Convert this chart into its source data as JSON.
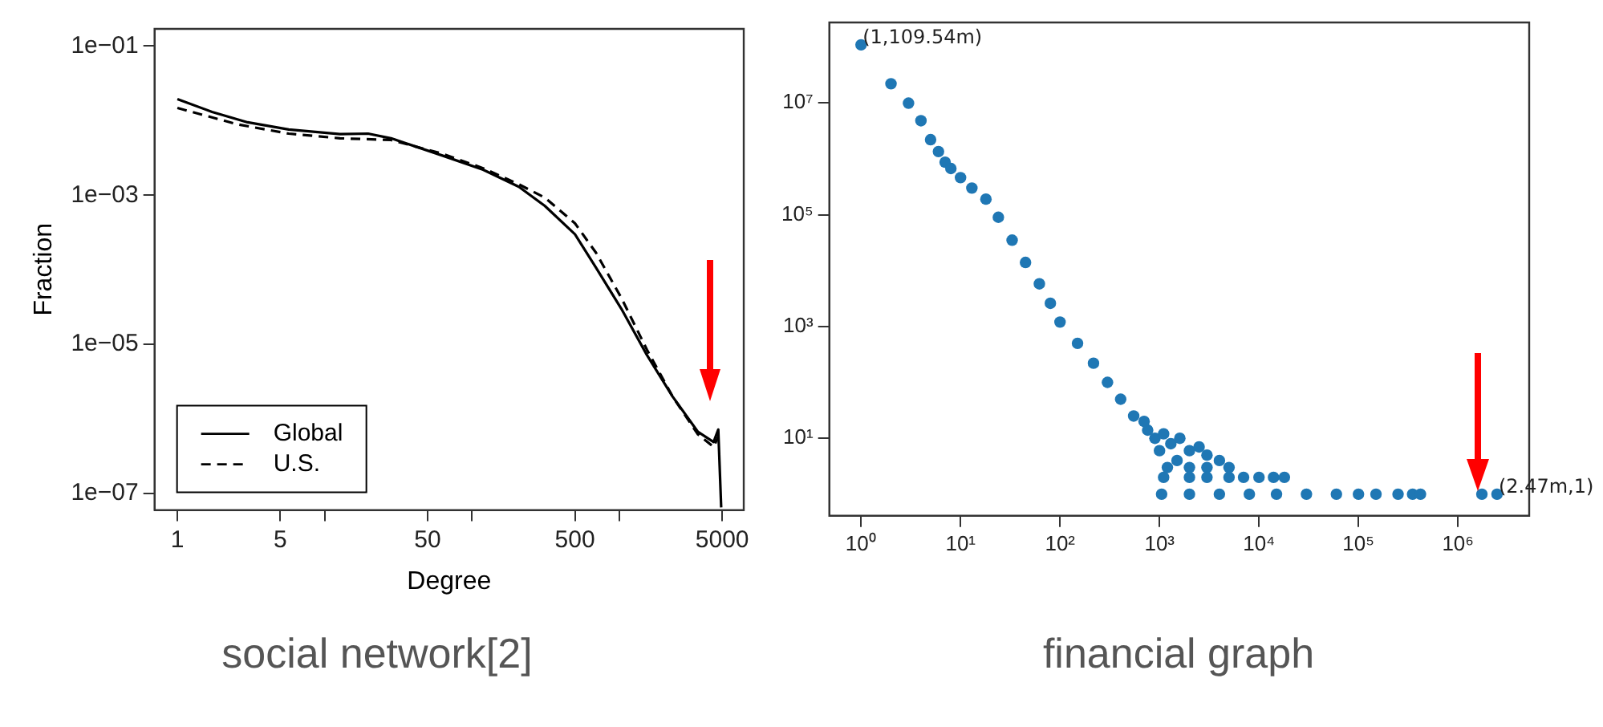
{
  "chart_data": [
    {
      "type": "line",
      "xlabel": "Degree",
      "ylabel": "Fraction",
      "log": "xy",
      "xlim": [
        0.7,
        7000
      ],
      "ylim": [
        6e-08,
        0.17
      ],
      "xticks": [
        1,
        5,
        {
          "value": 10,
          "label": null
        },
        50,
        {
          "value": 100,
          "label": null
        },
        500,
        {
          "value": 1000,
          "label": null
        },
        5000
      ],
      "yticks": [
        {
          "value": 1e-07,
          "label": "1e−07"
        },
        {
          "value": 1e-05,
          "label": "1e−05"
        },
        {
          "value": 0.001,
          "label": "1e−03"
        },
        {
          "value": 0.1,
          "label": "1e−01"
        }
      ],
      "marker": "none",
      "legend": "bottom left",
      "grid": false,
      "series": [
        {
          "name": "Global",
          "color": "#000000",
          "line_style": "solid",
          "x": [
            1,
            1.72,
            3,
            5.7,
            12.7,
            19.7,
            28.2,
            63,
            119,
            208,
            312,
            500,
            694,
            1033,
            1540,
            2300,
            3420,
            4370,
            4700,
            4920
          ],
          "values": [
            0.0195,
            0.0131,
            0.0095,
            0.0076,
            0.0066,
            0.0067,
            0.0058,
            0.0034,
            0.0022,
            0.0013,
            0.00072,
            0.0003,
            0.000107,
            3e-05,
            7.2e-06,
            2e-06,
            6.7e-07,
            4.9e-07,
            7.2e-07,
            6.5e-08
          ]
        },
        {
          "name": "U.S.",
          "color": "#000000",
          "line_style": "dashed",
          "x": [
            1,
            2.57,
            5.7,
            12.7,
            28.2,
            63,
            119,
            208,
            312,
            500,
            694,
            1033,
            1540,
            2300,
            3420,
            4370,
            4700
          ],
          "values": [
            0.0148,
            0.0089,
            0.0067,
            0.0058,
            0.0055,
            0.0036,
            0.0023,
            0.0014,
            0.00093,
            0.00042,
            0.00017,
            4.2e-05,
            8.5e-06,
            2e-06,
            6.2e-07,
            4.2e-07,
            5.8e-07
          ]
        }
      ],
      "annotations": [
        "social network[2]"
      ]
    },
    {
      "type": "scatter",
      "log": "xy",
      "xlim": [
        0.48,
        5200000
      ],
      "ylim": [
        0.41,
        275000000
      ],
      "xticks": [
        {
          "value": 1,
          "label": "10⁰"
        },
        {
          "value": 10,
          "label": "10¹"
        },
        {
          "value": 100,
          "label": "10²"
        },
        {
          "value": 1000,
          "label": "10³"
        },
        {
          "value": 10000,
          "label": "10⁴"
        },
        {
          "value": 100000,
          "label": "10⁵"
        },
        {
          "value": 1000000,
          "label": "10⁶"
        }
      ],
      "yticks": [
        {
          "value": 10,
          "label": "10¹"
        },
        {
          "value": 1000,
          "label": "10³"
        },
        {
          "value": 100000,
          "label": "10⁵"
        },
        {
          "value": 10000000,
          "label": "10⁷"
        }
      ],
      "marker": "circle",
      "grid": false,
      "series": [
        {
          "color": "#1f77b4",
          "x": [
            1,
            2,
            3,
            4,
            5,
            6,
            7,
            8,
            10,
            13,
            18,
            24,
            33,
            45,
            62,
            80,
            100,
            150,
            217,
            300,
            407,
            550,
            760,
            1000,
            700,
            900,
            1100,
            1300,
            1600,
            2000,
            2500,
            3000,
            4000,
            5000,
            1200,
            1500,
            2000,
            3000,
            1100,
            2000,
            3000,
            5000,
            7000,
            10000,
            14000,
            18000,
            1050,
            2000,
            4000,
            8000,
            15000,
            30000,
            60000,
            100000,
            150000,
            250000,
            350000,
            420000,
            1740000,
            2470000
          ],
          "values": [
            109540000,
            22000000,
            9900000,
            4800000,
            2200000,
            1350000,
            870000,
            670000,
            460000,
            300000,
            190000,
            90000,
            35000,
            14000,
            5800,
            2600,
            1200,
            500,
            220,
            100,
            50,
            25,
            14,
            6,
            20,
            10,
            12,
            8,
            10,
            6,
            7,
            5,
            4,
            3,
            3,
            4,
            3,
            3,
            2,
            2,
            2,
            2,
            2,
            2,
            2,
            2,
            1,
            1,
            1,
            1,
            1,
            1,
            1,
            1,
            1,
            1,
            1,
            1,
            1,
            1
          ]
        }
      ],
      "annotations": [
        {
          "text": "(1,109.54m)",
          "x": 1,
          "y": 109540000
        },
        {
          "text": "(2.47m,1)",
          "x": 2470000,
          "y": 1
        },
        "financial graph"
      ]
    }
  ]
}
